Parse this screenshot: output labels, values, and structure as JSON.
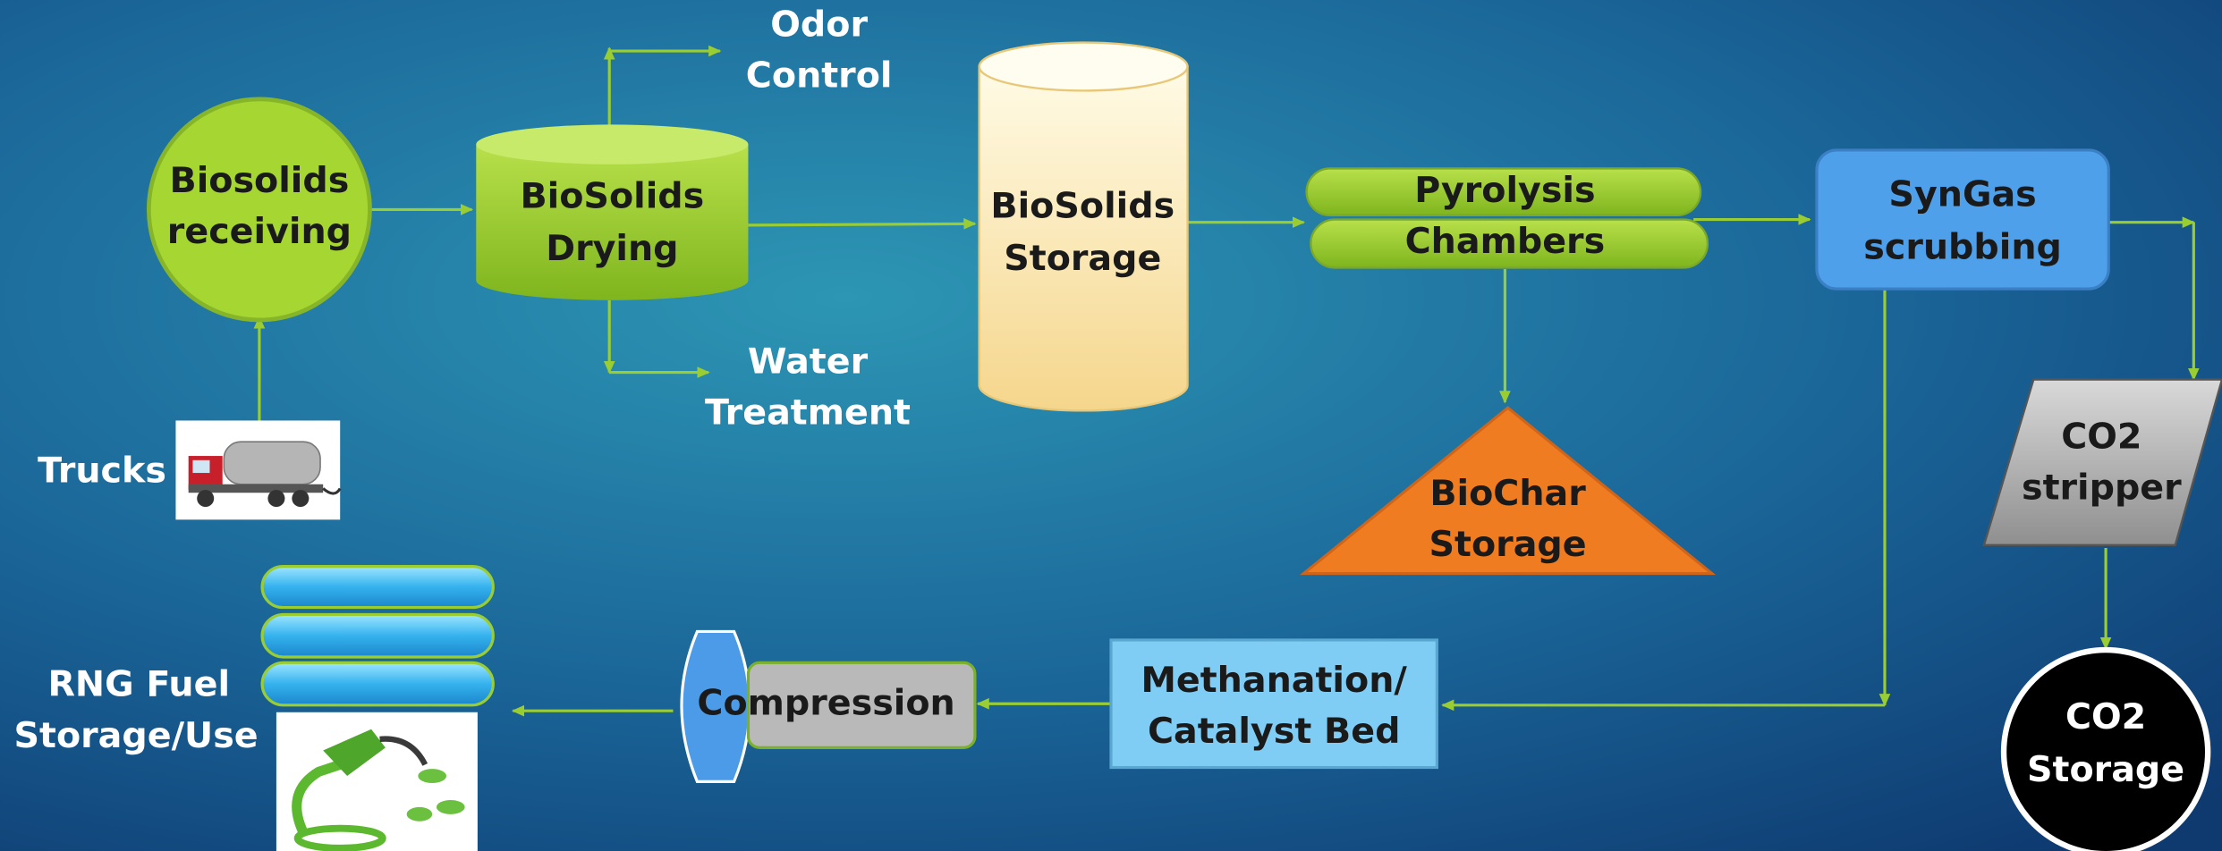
{
  "nodes": [
    {
      "lines": [
        "Biosolids",
        "receiving"
      ]
    },
    {
      "lines": [
        "BioSolids",
        "Drying"
      ]
    },
    {
      "lines": [
        "Odor",
        "Control"
      ]
    },
    {
      "lines": [
        "Water",
        "Treatment"
      ]
    },
    {
      "lines": [
        "BioSolids",
        "Storage"
      ]
    },
    {
      "lines": [
        "Pyrolysis",
        "Chambers"
      ]
    },
    {
      "lines": [
        "BioChar",
        "Storage"
      ]
    },
    {
      "lines": [
        "SynGas",
        "scrubbing"
      ]
    },
    {
      "lines": [
        "CO2",
        "stripper"
      ]
    },
    {
      "lines": [
        "CO2",
        "Storage"
      ]
    },
    {
      "lines": [
        "Methanation/",
        "Catalyst Bed"
      ]
    },
    {
      "lines": [
        "Compression"
      ]
    },
    {
      "lines": [
        "RNG Fuel",
        "Storage/Use"
      ]
    },
    {
      "lines": [
        "Trucks"
      ]
    }
  ]
}
